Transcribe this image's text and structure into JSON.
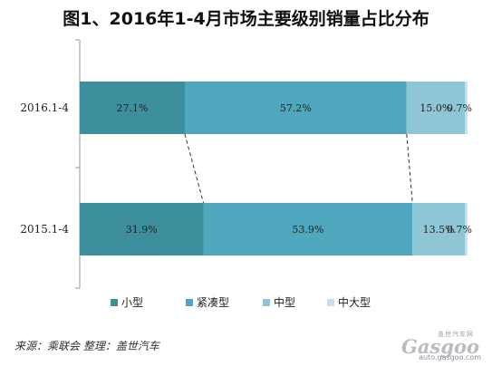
{
  "chart_data": {
    "type": "bar",
    "orientation": "horizontal",
    "stacked": "percent",
    "title": "图1、2016年1-4月市场主要级别销量占比分布",
    "categories": [
      "2016.1-4",
      "2015.1-4"
    ],
    "series": [
      {
        "name": "小型",
        "color": "#3e8f9e",
        "values": [
          27.1,
          31.9
        ],
        "labels": [
          "27.1%",
          "31.9%"
        ]
      },
      {
        "name": "紧凑型",
        "color": "#4ea7bc",
        "values": [
          57.2,
          53.9
        ],
        "labels": [
          "57.2%",
          "53.9%"
        ]
      },
      {
        "name": "中型",
        "color": "#8ec6d6",
        "values": [
          15.0,
          13.5
        ],
        "labels": [
          "15.0%",
          "13.5%"
        ]
      },
      {
        "name": "中大型",
        "color": "#c3e2ec",
        "values": [
          0.7,
          0.7
        ],
        "labels": [
          "0.7%",
          "0.7%"
        ]
      }
    ],
    "xlim": [
      0,
      100
    ],
    "grid": false,
    "legend_position": "bottom"
  },
  "footer": {
    "source": "来源：乘联会   整理：盖世汽车"
  },
  "watermark": {
    "cn": "盖世汽车网",
    "logo": "Gasgoo",
    "url": "auto.gasgoo.com"
  }
}
